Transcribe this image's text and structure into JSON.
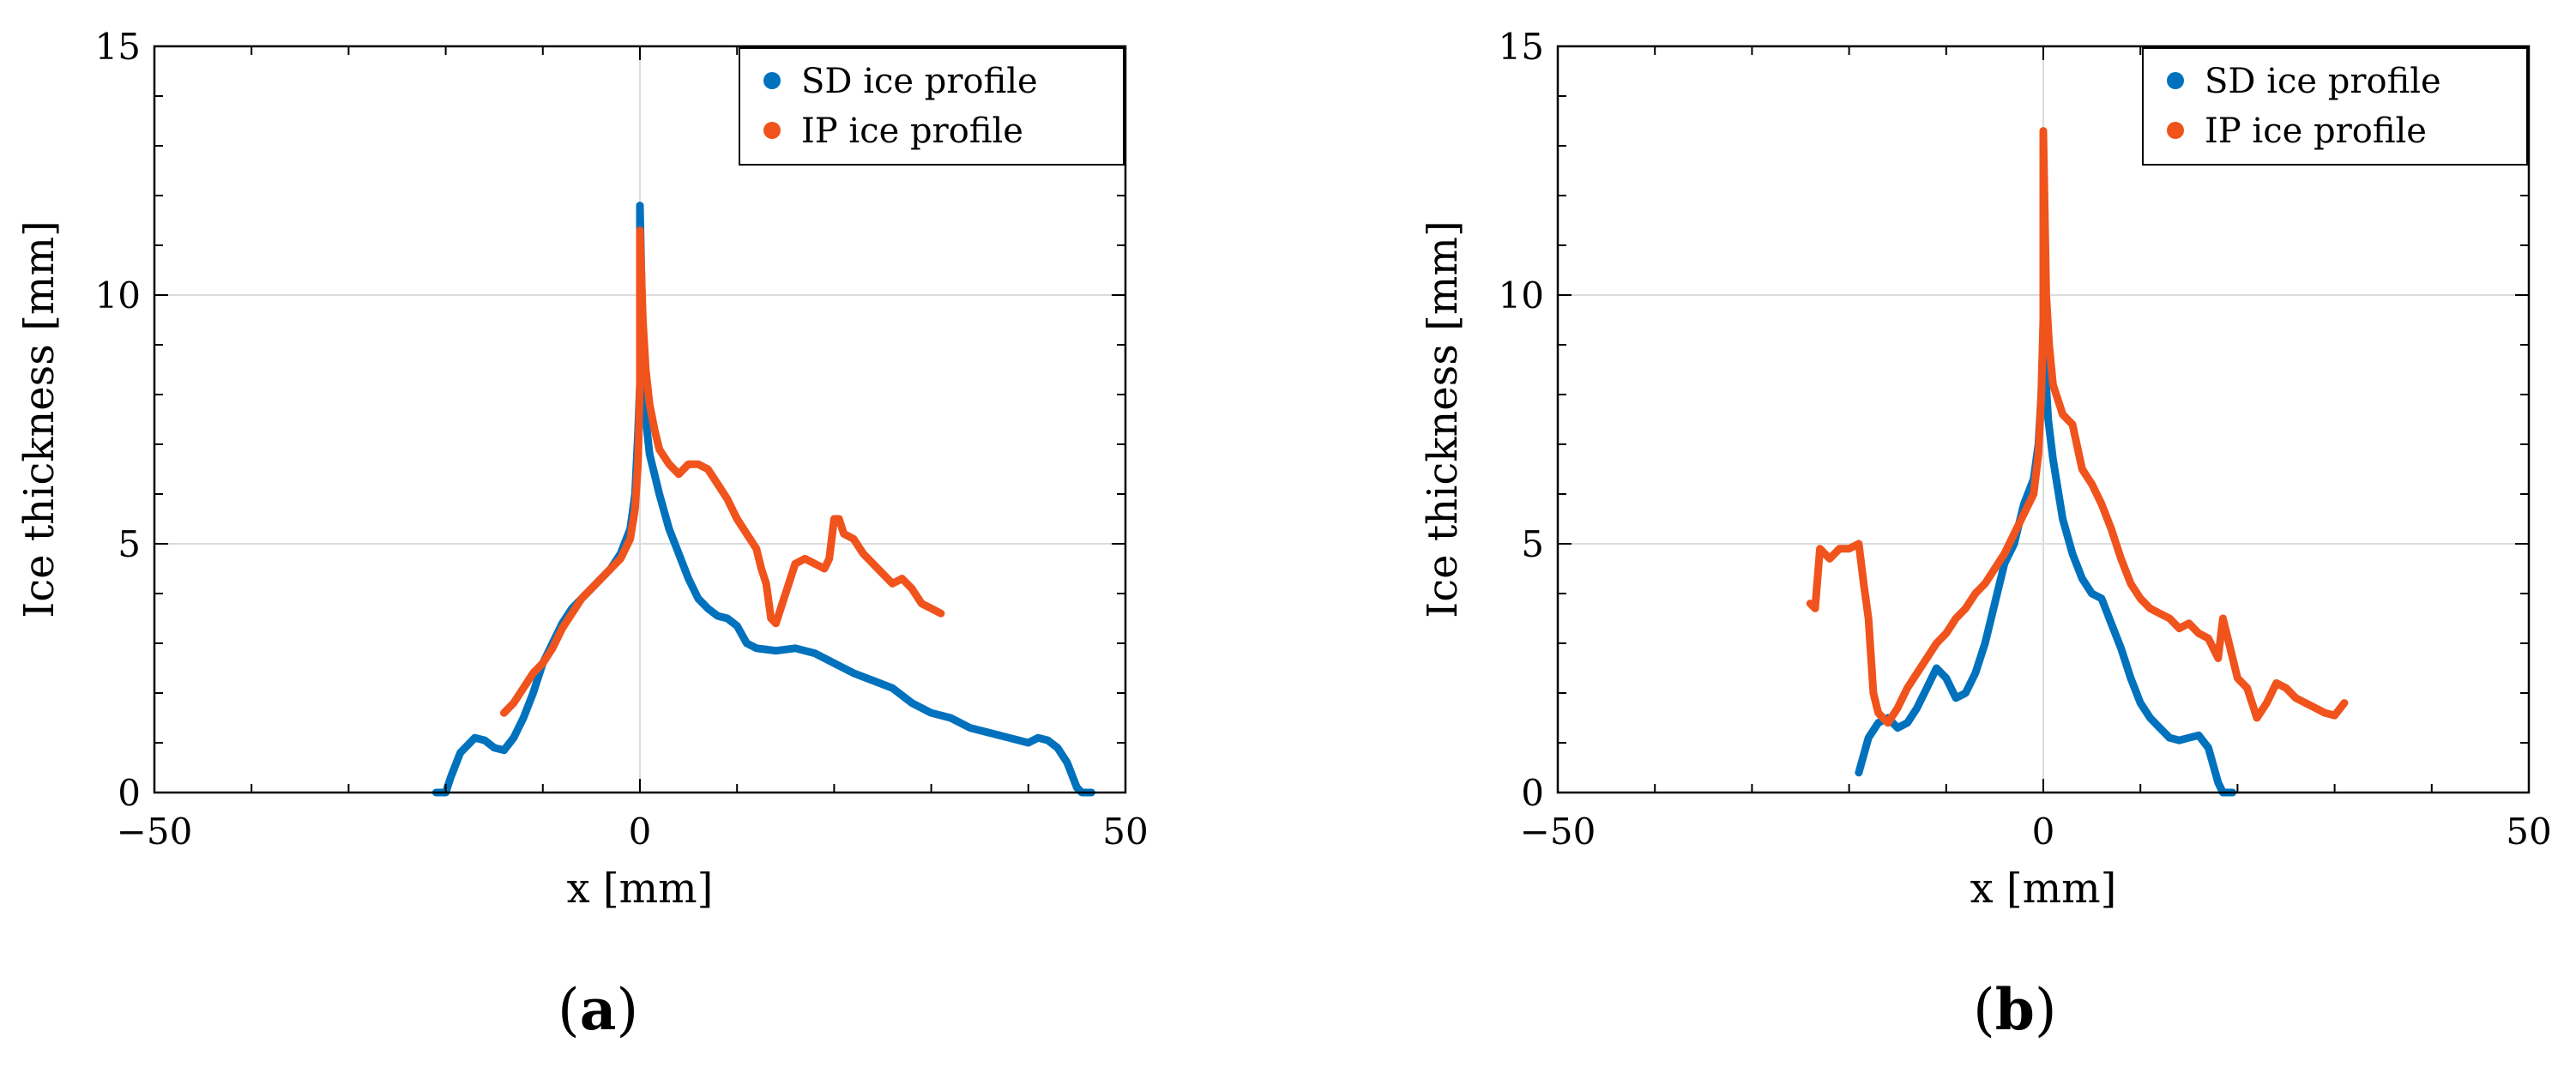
{
  "colors": {
    "sd": "#0072bd",
    "ip": "#f0531c",
    "axis": "#000000",
    "grid": "#dcdcdc"
  },
  "chart_data": [
    {
      "type": "scatter",
      "panel": "a",
      "panel_letter": "a",
      "xlabel": "x [mm]",
      "ylabel": "Ice thickness [mm]",
      "xlim": [
        -50,
        50
      ],
      "ylim": [
        0,
        15
      ],
      "xticks": [
        -50,
        0,
        50
      ],
      "yticks": [
        0,
        5,
        10,
        15
      ],
      "xtick_labels": [
        "−50",
        "0",
        "50"
      ],
      "ytick_labels": [
        "0",
        "5",
        "10",
        "15"
      ],
      "legend": [
        "SD ice profile",
        "IP ice profile"
      ],
      "legend_position": "top-right",
      "series": [
        {
          "name": "SD ice profile",
          "points": [
            [
              -21,
              0
            ],
            [
              -20,
              0
            ],
            [
              -19.5,
              0.3
            ],
            [
              -18.5,
              0.8
            ],
            [
              -17,
              1.1
            ],
            [
              -16,
              1.05
            ],
            [
              -15,
              0.9
            ],
            [
              -14,
              0.85
            ],
            [
              -13,
              1.1
            ],
            [
              -12,
              1.5
            ],
            [
              -11,
              2
            ],
            [
              -10,
              2.6
            ],
            [
              -9,
              3
            ],
            [
              -8,
              3.4
            ],
            [
              -7,
              3.7
            ],
            [
              -6,
              3.9
            ],
            [
              -5,
              4.1
            ],
            [
              -4,
              4.3
            ],
            [
              -3,
              4.5
            ],
            [
              -2,
              4.8
            ],
            [
              -1,
              5.3
            ],
            [
              -0.5,
              6
            ],
            [
              -0.2,
              7.2
            ],
            [
              0,
              8.2
            ],
            [
              0,
              11.8
            ],
            [
              0.3,
              9
            ],
            [
              0.6,
              7.5
            ],
            [
              1,
              6.8
            ],
            [
              2,
              6
            ],
            [
              3,
              5.3
            ],
            [
              4,
              4.8
            ],
            [
              5,
              4.3
            ],
            [
              6,
              3.9
            ],
            [
              7,
              3.7
            ],
            [
              8,
              3.55
            ],
            [
              9,
              3.5
            ],
            [
              10,
              3.35
            ],
            [
              11,
              3
            ],
            [
              12,
              2.9
            ],
            [
              14,
              2.85
            ],
            [
              16,
              2.9
            ],
            [
              18,
              2.8
            ],
            [
              20,
              2.6
            ],
            [
              22,
              2.4
            ],
            [
              24,
              2.25
            ],
            [
              26,
              2.1
            ],
            [
              28,
              1.8
            ],
            [
              30,
              1.6
            ],
            [
              32,
              1.5
            ],
            [
              34,
              1.3
            ],
            [
              36,
              1.2
            ],
            [
              38,
              1.1
            ],
            [
              40,
              1
            ],
            [
              41,
              1.1
            ],
            [
              42,
              1.05
            ],
            [
              43,
              0.9
            ],
            [
              44,
              0.6
            ],
            [
              45,
              0.1
            ],
            [
              45.5,
              0
            ],
            [
              46.5,
              0
            ]
          ]
        },
        {
          "name": "IP ice profile",
          "points": [
            [
              -14,
              1.6
            ],
            [
              -13,
              1.8
            ],
            [
              -12,
              2.1
            ],
            [
              -11,
              2.4
            ],
            [
              -10,
              2.6
            ],
            [
              -9,
              2.9
            ],
            [
              -8,
              3.3
            ],
            [
              -7,
              3.6
            ],
            [
              -6,
              3.9
            ],
            [
              -5,
              4.1
            ],
            [
              -4,
              4.3
            ],
            [
              -3,
              4.5
            ],
            [
              -2,
              4.7
            ],
            [
              -1,
              5.1
            ],
            [
              -0.5,
              5.7
            ],
            [
              -0.2,
              6.6
            ],
            [
              0,
              8.2
            ],
            [
              0,
              11.3
            ],
            [
              0.3,
              9.5
            ],
            [
              0.6,
              8.5
            ],
            [
              1,
              7.8
            ],
            [
              1.5,
              7.3
            ],
            [
              2,
              6.9
            ],
            [
              3,
              6.6
            ],
            [
              4,
              6.4
            ],
            [
              5,
              6.6
            ],
            [
              6,
              6.6
            ],
            [
              7,
              6.5
            ],
            [
              8,
              6.2
            ],
            [
              9,
              5.9
            ],
            [
              10,
              5.5
            ],
            [
              11,
              5.2
            ],
            [
              12,
              4.9
            ],
            [
              12.5,
              4.5
            ],
            [
              13,
              4.2
            ],
            [
              13.5,
              3.5
            ],
            [
              14,
              3.4
            ],
            [
              16,
              4.6
            ],
            [
              17,
              4.7
            ],
            [
              18,
              4.6
            ],
            [
              19,
              4.5
            ],
            [
              19.5,
              4.7
            ],
            [
              20,
              5.5
            ],
            [
              20.5,
              5.5
            ],
            [
              21,
              5.2
            ],
            [
              22,
              5.1
            ],
            [
              23,
              4.8
            ],
            [
              24,
              4.6
            ],
            [
              25,
              4.4
            ],
            [
              26,
              4.2
            ],
            [
              27,
              4.3
            ],
            [
              28,
              4.1
            ],
            [
              29,
              3.8
            ],
            [
              30,
              3.7
            ],
            [
              31,
              3.6
            ]
          ]
        }
      ]
    },
    {
      "type": "scatter",
      "panel": "b",
      "panel_letter": "b",
      "xlabel": "x [mm]",
      "ylabel": "Ice thickness [mm]",
      "xlim": [
        -50,
        50
      ],
      "ylim": [
        0,
        15
      ],
      "xticks": [
        -50,
        0,
        50
      ],
      "yticks": [
        0,
        5,
        10,
        15
      ],
      "xtick_labels": [
        "−50",
        "0",
        "50"
      ],
      "ytick_labels": [
        "0",
        "5",
        "10",
        "15"
      ],
      "legend": [
        "SD ice profile",
        "IP ice profile"
      ],
      "legend_position": "top-right",
      "series": [
        {
          "name": "SD ice profile",
          "points": [
            [
              -19,
              0.4
            ],
            [
              -18,
              1.1
            ],
            [
              -17,
              1.4
            ],
            [
              -16,
              1.5
            ],
            [
              -15,
              1.3
            ],
            [
              -14,
              1.4
            ],
            [
              -13,
              1.7
            ],
            [
              -12,
              2.1
            ],
            [
              -11,
              2.5
            ],
            [
              -10,
              2.3
            ],
            [
              -9,
              1.9
            ],
            [
              -8,
              2
            ],
            [
              -7,
              2.4
            ],
            [
              -6,
              3
            ],
            [
              -5,
              3.8
            ],
            [
              -4,
              4.6
            ],
            [
              -3,
              5
            ],
            [
              -2,
              5.8
            ],
            [
              -1,
              6.3
            ],
            [
              -0.5,
              7
            ],
            [
              -0.2,
              8
            ],
            [
              0,
              9.3
            ],
            [
              0,
              10.2
            ],
            [
              0.2,
              8.5
            ],
            [
              0.5,
              7.5
            ],
            [
              1,
              6.7
            ],
            [
              2,
              5.5
            ],
            [
              3,
              4.8
            ],
            [
              4,
              4.3
            ],
            [
              5,
              4
            ],
            [
              6,
              3.9
            ],
            [
              7,
              3.4
            ],
            [
              8,
              2.9
            ],
            [
              9,
              2.3
            ],
            [
              10,
              1.8
            ],
            [
              11,
              1.5
            ],
            [
              12,
              1.3
            ],
            [
              13,
              1.1
            ],
            [
              14,
              1.05
            ],
            [
              15,
              1.1
            ],
            [
              16,
              1.15
            ],
            [
              17,
              0.9
            ],
            [
              18,
              0.2
            ],
            [
              18.5,
              0
            ],
            [
              19.5,
              0
            ]
          ]
        },
        {
          "name": "IP ice profile",
          "points": [
            [
              -24,
              3.8
            ],
            [
              -23.5,
              3.7
            ],
            [
              -23,
              4.9
            ],
            [
              -22,
              4.7
            ],
            [
              -21,
              4.9
            ],
            [
              -20,
              4.9
            ],
            [
              -19,
              5
            ],
            [
              -18.5,
              4.2
            ],
            [
              -18,
              3.5
            ],
            [
              -17.5,
              2
            ],
            [
              -17,
              1.6
            ],
            [
              -16,
              1.4
            ],
            [
              -15,
              1.7
            ],
            [
              -14,
              2.1
            ],
            [
              -13,
              2.4
            ],
            [
              -12,
              2.7
            ],
            [
              -11,
              3
            ],
            [
              -10,
              3.2
            ],
            [
              -9,
              3.5
            ],
            [
              -8,
              3.7
            ],
            [
              -7,
              4
            ],
            [
              -6,
              4.2
            ],
            [
              -5,
              4.5
            ],
            [
              -4,
              4.8
            ],
            [
              -3,
              5.2
            ],
            [
              -2,
              5.6
            ],
            [
              -1,
              6
            ],
            [
              -0.5,
              6.8
            ],
            [
              -0.2,
              8
            ],
            [
              0,
              9.5
            ],
            [
              0,
              13.3
            ],
            [
              0.3,
              10
            ],
            [
              0.6,
              9
            ],
            [
              1,
              8.2
            ],
            [
              2,
              7.6
            ],
            [
              3,
              7.4
            ],
            [
              4,
              6.5
            ],
            [
              5,
              6.2
            ],
            [
              6,
              5.8
            ],
            [
              7,
              5.3
            ],
            [
              8,
              4.7
            ],
            [
              9,
              4.2
            ],
            [
              10,
              3.9
            ],
            [
              11,
              3.7
            ],
            [
              12,
              3.6
            ],
            [
              13,
              3.5
            ],
            [
              14,
              3.3
            ],
            [
              15,
              3.4
            ],
            [
              16,
              3.2
            ],
            [
              17,
              3.1
            ],
            [
              17.5,
              2.9
            ],
            [
              18,
              2.7
            ],
            [
              18.5,
              3.5
            ],
            [
              19,
              3.1
            ],
            [
              20,
              2.3
            ],
            [
              21,
              2.1
            ],
            [
              22,
              1.5
            ],
            [
              23,
              1.8
            ],
            [
              24,
              2.2
            ],
            [
              25,
              2.1
            ],
            [
              26,
              1.9
            ],
            [
              27,
              1.8
            ],
            [
              28,
              1.7
            ],
            [
              29,
              1.6
            ],
            [
              30,
              1.55
            ],
            [
              31,
              1.8
            ]
          ]
        }
      ]
    }
  ]
}
